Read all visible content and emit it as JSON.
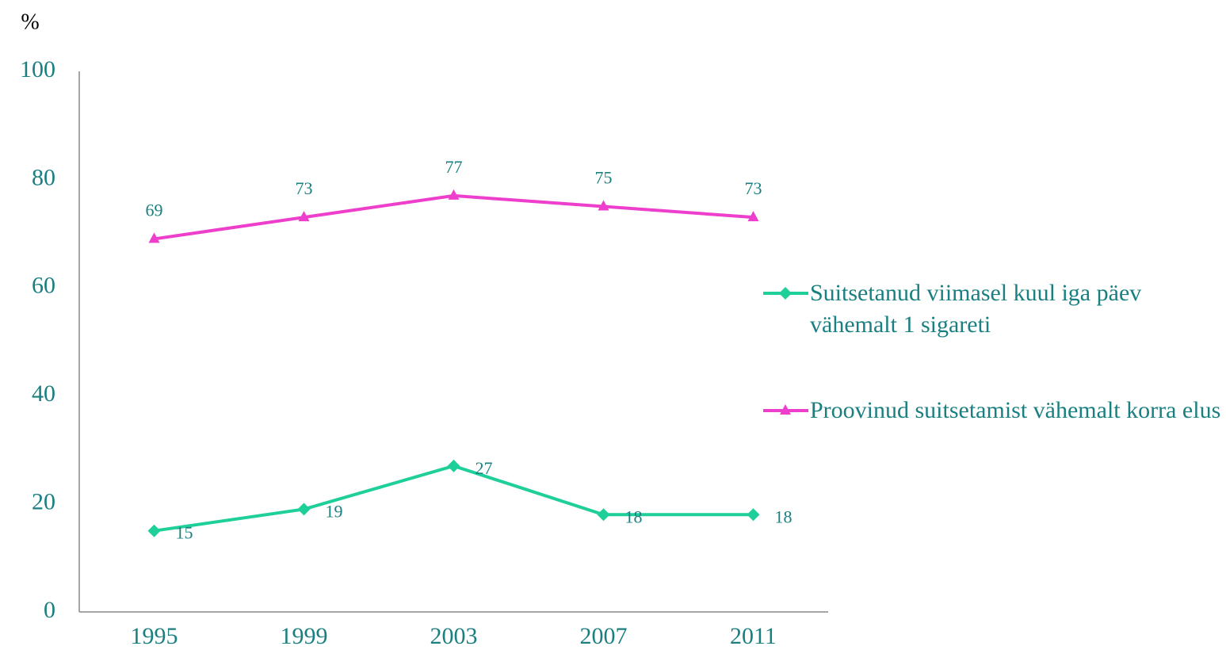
{
  "chart_data": {
    "type": "line",
    "y_label": "%",
    "categories": [
      "1995",
      "1999",
      "2003",
      "2007",
      "2011"
    ],
    "series": [
      {
        "name": "Suitsetanud viimasel kuul iga päev vähemalt 1 sigareti",
        "color": "#1fcf99",
        "marker": "diamond",
        "values": [
          15,
          19,
          27,
          18,
          18
        ]
      },
      {
        "name": "Proovinud suitsetamist vähemalt korra elus",
        "color": "#ee3fcc",
        "marker": "triangle",
        "values": [
          69,
          73,
          77,
          75,
          73
        ]
      }
    ],
    "ylim": [
      0,
      100
    ],
    "yticks": [
      0,
      20,
      40,
      60,
      80,
      100
    ],
    "grid": false,
    "legend": "right"
  }
}
